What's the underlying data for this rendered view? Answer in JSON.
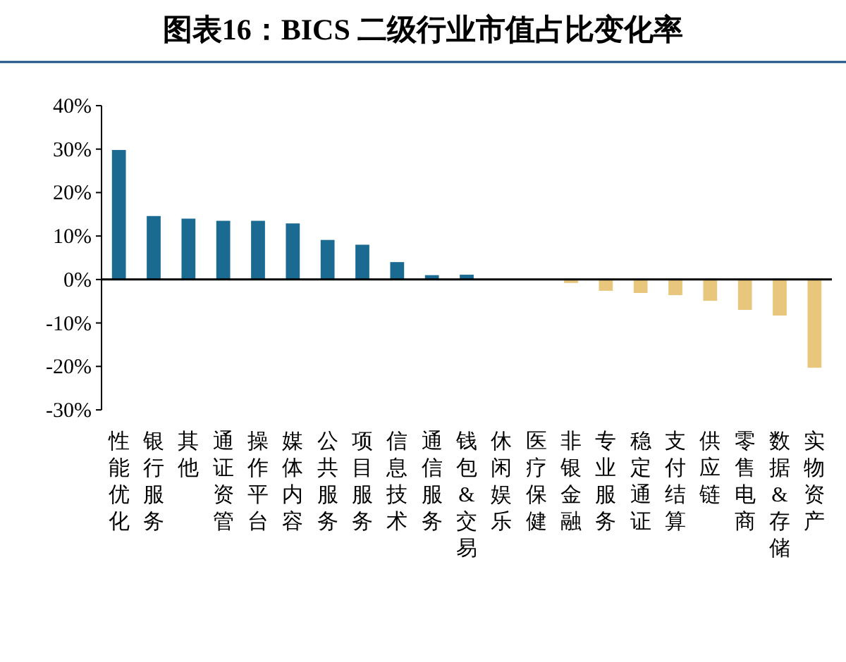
{
  "chart_data": {
    "type": "bar",
    "title": "图表16：BICS 二级行业市值占比变化率",
    "categories": [
      "性能优化",
      "银行服务",
      "其他",
      "通证资管",
      "操作平台",
      "媒体内容",
      "公共服务",
      "项目服务",
      "信息技术",
      "通信服务",
      "钱包&交易",
      "休闲娱乐",
      "医疗保健",
      "非银金融",
      "专业服务",
      "稳定通证",
      "支付结算",
      "供应链",
      "零售电商",
      "数据&存储",
      "实物资产"
    ],
    "values": [
      29.8,
      14.6,
      14.0,
      13.5,
      13.5,
      12.9,
      9.1,
      8.0,
      4.0,
      1.0,
      1.1,
      0.1,
      0.1,
      -0.8,
      -2.6,
      -3.1,
      -3.6,
      -4.9,
      -7.0,
      -8.3,
      -20.3
    ],
    "colors": [
      "#1b6a92",
      "#1b6a92",
      "#1b6a92",
      "#1b6a92",
      "#1b6a92",
      "#1b6a92",
      "#1b6a92",
      "#1b6a92",
      "#1b6a92",
      "#1b6a92",
      "#1b6a92",
      "#1b6a92",
      "#1b6a92",
      "#e8c77d",
      "#e8c77d",
      "#e8c77d",
      "#e8c77d",
      "#e8c77d",
      "#e8c77d",
      "#e8c77d",
      "#e8c77d"
    ],
    "ylim": [
      -30,
      40
    ],
    "yticks": [
      {
        "value": -30,
        "label": "-30%"
      },
      {
        "value": -20,
        "label": "-20%"
      },
      {
        "value": -10,
        "label": "-10%"
      },
      {
        "value": 0,
        "label": "0%"
      },
      {
        "value": 10,
        "label": "10%"
      },
      {
        "value": 20,
        "label": "20%"
      },
      {
        "value": 30,
        "label": "30%"
      },
      {
        "value": 40,
        "label": "40%"
      }
    ]
  }
}
